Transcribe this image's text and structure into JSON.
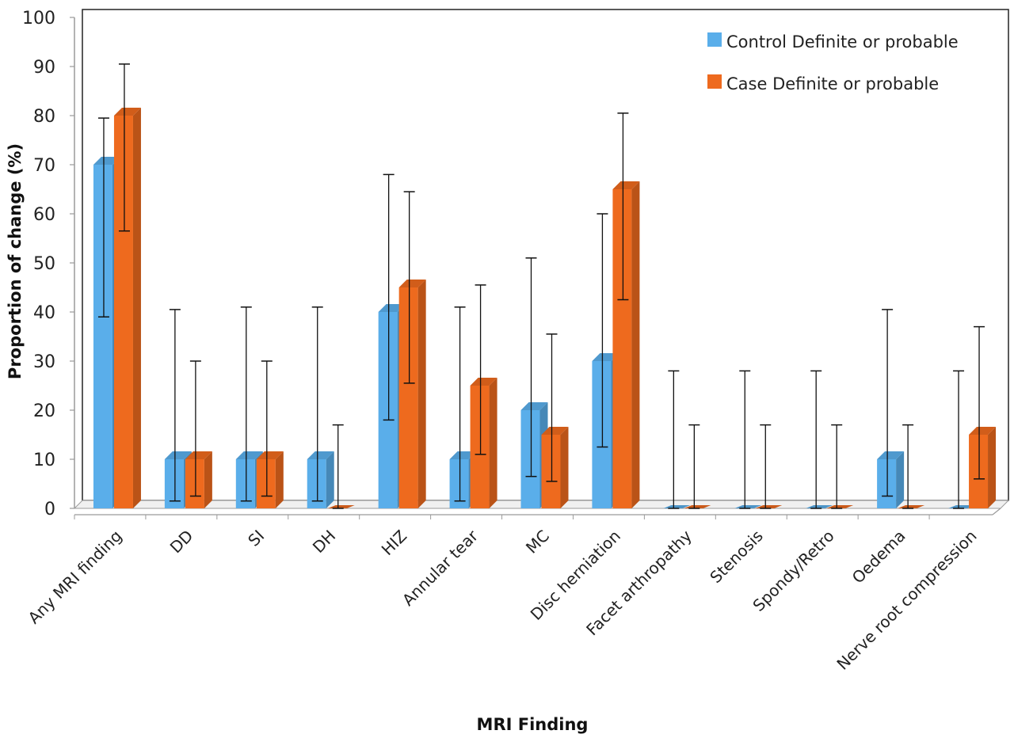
{
  "chart_data": {
    "type": "bar",
    "xlabel": "MRI Finding",
    "ylabel": "Proportion of change (%)",
    "ylim": [
      0,
      100
    ],
    "yticks": [
      0,
      10,
      20,
      30,
      40,
      50,
      60,
      70,
      80,
      90,
      100
    ],
    "legend_position": "top-right",
    "categories": [
      "Any MRI finding",
      "DD",
      "SI",
      "DH",
      "HIZ",
      "Annular tear",
      "MC",
      "Disc herniation",
      "Facet arthropathy",
      "Stenosis",
      "Spondy/Retro",
      "Oedema",
      "Nerve root compression"
    ],
    "series": [
      {
        "name": "Control Definite or probable",
        "color": "#5aaeea",
        "values": [
          70,
          10,
          10,
          10,
          40,
          10,
          20,
          30,
          0,
          0,
          0,
          10,
          0
        ],
        "error_low": [
          39,
          1.5,
          1.5,
          1.5,
          18,
          1.5,
          6.5,
          12.5,
          0,
          0,
          0,
          2.5,
          0
        ],
        "error_high": [
          79.5,
          40.5,
          41,
          41,
          68,
          41,
          51,
          60,
          28,
          28,
          28,
          40.5,
          28
        ]
      },
      {
        "name": "Case Definite or probable",
        "color": "#ee6a1e",
        "values": [
          80,
          10,
          10,
          0,
          45,
          25,
          15,
          65,
          0,
          0,
          0,
          0,
          15
        ],
        "error_low": [
          56.5,
          2.5,
          2.5,
          0,
          25.5,
          11,
          5.5,
          42.5,
          0,
          0,
          0,
          0,
          6
        ],
        "error_high": [
          90.5,
          30,
          30,
          17,
          64.5,
          45.5,
          35.5,
          80.5,
          17,
          17,
          17,
          17,
          37
        ]
      }
    ]
  }
}
